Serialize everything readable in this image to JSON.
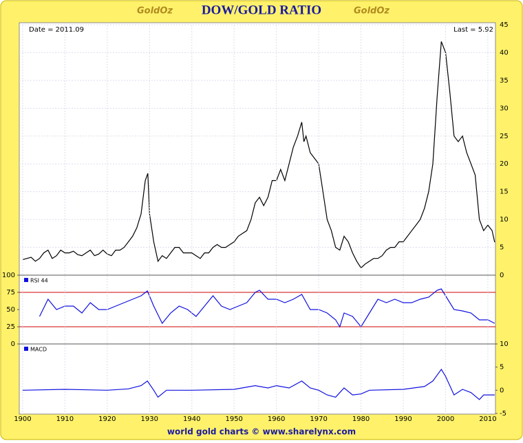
{
  "header": {
    "title": "DOW/GOLD RATIO",
    "logo_left": "GoldOz",
    "logo_right": "GoldOz"
  },
  "footer": "world gold charts © www.sharelynx.com",
  "chart_data": [
    {
      "type": "line",
      "annotations": [
        "Date = 2011.09",
        "Last = 5.92"
      ],
      "xlim": [
        1899.2,
        2011.8
      ],
      "ylim": [
        0,
        45
      ],
      "yticks": [
        0,
        5,
        10,
        15,
        20,
        25,
        30,
        35,
        40,
        45
      ],
      "grid": true,
      "x": [
        1900,
        1901,
        1902,
        1903,
        1904,
        1905,
        1906,
        1907,
        1908,
        1909,
        1910,
        1911,
        1912,
        1913,
        1914,
        1915,
        1916,
        1917,
        1918,
        1919,
        1920,
        1921,
        1922,
        1923,
        1924,
        1925,
        1926,
        1927,
        1928,
        1929,
        1929.6,
        1930,
        1931,
        1932,
        1933,
        1934,
        1935,
        1936,
        1937,
        1938,
        1939,
        1940,
        1941,
        1942,
        1943,
        1944,
        1945,
        1946,
        1947,
        1948,
        1949,
        1950,
        1951,
        1952,
        1953,
        1954,
        1955,
        1956,
        1957,
        1958,
        1959,
        1960,
        1961,
        1962,
        1963,
        1964,
        1965,
        1966,
        1966.5,
        1967,
        1968,
        1969,
        1970,
        1971,
        1972,
        1973,
        1974,
        1975,
        1976,
        1977,
        1978,
        1979,
        1980,
        1981,
        1982,
        1983,
        1984,
        1985,
        1986,
        1987,
        1988,
        1989,
        1990,
        1991,
        1992,
        1993,
        1994,
        1995,
        1996,
        1997,
        1998,
        1999,
        2000,
        2001,
        2002,
        2003,
        2004,
        2005,
        2006,
        2007,
        2008,
        2009,
        2010,
        2011,
        2011.6
      ],
      "series": [
        {
          "color": "#000000",
          "values": [
            2.8,
            3,
            3.2,
            2.5,
            3,
            4,
            4.5,
            3,
            3.5,
            4.5,
            4,
            4,
            4.3,
            3.7,
            3.5,
            4,
            4.5,
            3.5,
            3.8,
            4.5,
            3.8,
            3.5,
            4.5,
            4.5,
            5,
            6,
            7,
            8.5,
            11,
            17,
            18.3,
            11,
            6,
            2.5,
            3.5,
            3,
            4,
            5,
            5,
            4,
            4,
            4,
            3.5,
            3,
            4,
            4,
            5,
            5.5,
            5,
            5,
            5.5,
            6,
            7,
            7.5,
            8,
            10,
            13,
            14,
            12.5,
            14,
            17,
            17,
            19,
            17,
            20,
            23,
            25,
            27.5,
            24,
            25,
            22,
            21,
            20,
            15,
            10,
            8,
            5,
            4.5,
            7,
            6,
            4,
            2.5,
            1.3,
            2,
            2.5,
            3,
            3,
            3.5,
            4.5,
            5,
            5,
            6,
            6,
            7,
            8,
            9,
            10,
            12,
            15,
            20,
            32,
            42,
            40,
            33,
            25,
            24,
            25,
            22,
            20,
            18,
            10,
            8,
            9,
            8,
            5.92
          ]
        }
      ]
    },
    {
      "type": "line",
      "xlim": [
        1899.2,
        2011.8
      ],
      "ylim": [
        0,
        100
      ],
      "yticks": [
        0,
        25,
        50,
        75,
        100
      ],
      "reference_lines": [
        75,
        25
      ],
      "reference_color": "#d00000",
      "x": [
        1904,
        1906,
        1908,
        1910,
        1912,
        1914,
        1916,
        1918,
        1920,
        1922,
        1924,
        1926,
        1928,
        1929.5,
        1931,
        1933,
        1935,
        1937,
        1939,
        1941,
        1943,
        1945,
        1947,
        1949,
        1951,
        1953,
        1955,
        1956,
        1958,
        1960,
        1962,
        1964,
        1966,
        1968,
        1970,
        1972,
        1974,
        1975,
        1976,
        1978,
        1980,
        1982,
        1984,
        1986,
        1988,
        1990,
        1992,
        1994,
        1996,
        1998,
        1999,
        2000,
        2002,
        2004,
        2006,
        2008,
        2010,
        2011.6
      ],
      "series": [
        {
          "name": "RSI 44",
          "color": "#1010e0",
          "values": [
            40,
            65,
            50,
            55,
            55,
            45,
            60,
            50,
            50,
            55,
            60,
            65,
            70,
            77,
            55,
            30,
            45,
            55,
            50,
            40,
            55,
            70,
            55,
            50,
            55,
            60,
            75,
            78,
            65,
            65,
            60,
            65,
            72,
            50,
            50,
            45,
            35,
            25,
            45,
            40,
            25,
            45,
            65,
            60,
            65,
            60,
            60,
            65,
            68,
            78,
            80,
            70,
            50,
            48,
            45,
            35,
            35,
            30
          ]
        }
      ]
    },
    {
      "type": "line",
      "xlim": [
        1899.2,
        2011.8
      ],
      "ylim": [
        -5,
        10
      ],
      "yticks": [
        -5,
        0,
        5,
        10
      ],
      "xticks": [
        1900,
        1910,
        1920,
        1930,
        1940,
        1950,
        1960,
        1970,
        1980,
        1990,
        2000,
        2010
      ],
      "x": [
        1900,
        1910,
        1920,
        1925,
        1928,
        1929.5,
        1931,
        1932,
        1934,
        1940,
        1950,
        1955,
        1958,
        1960,
        1963,
        1966,
        1968,
        1970,
        1972,
        1974,
        1975,
        1976,
        1978,
        1980,
        1982,
        1990,
        1995,
        1997,
        1999,
        2000,
        2002,
        2004,
        2006,
        2008,
        2009,
        2011.6
      ],
      "series": [
        {
          "name": "MACD",
          "color": "#1010e0",
          "values": [
            0,
            0.2,
            0,
            0.3,
            1,
            2,
            0,
            -1.5,
            0,
            0,
            0.2,
            1,
            0.5,
            1,
            0.5,
            2,
            0.5,
            0,
            -1,
            -1.5,
            -0.5,
            0.5,
            -1,
            -0.8,
            0,
            0.2,
            0.8,
            2,
            4.5,
            3,
            -1,
            0.2,
            -0.5,
            -2,
            -1,
            -1
          ]
        }
      ]
    }
  ]
}
